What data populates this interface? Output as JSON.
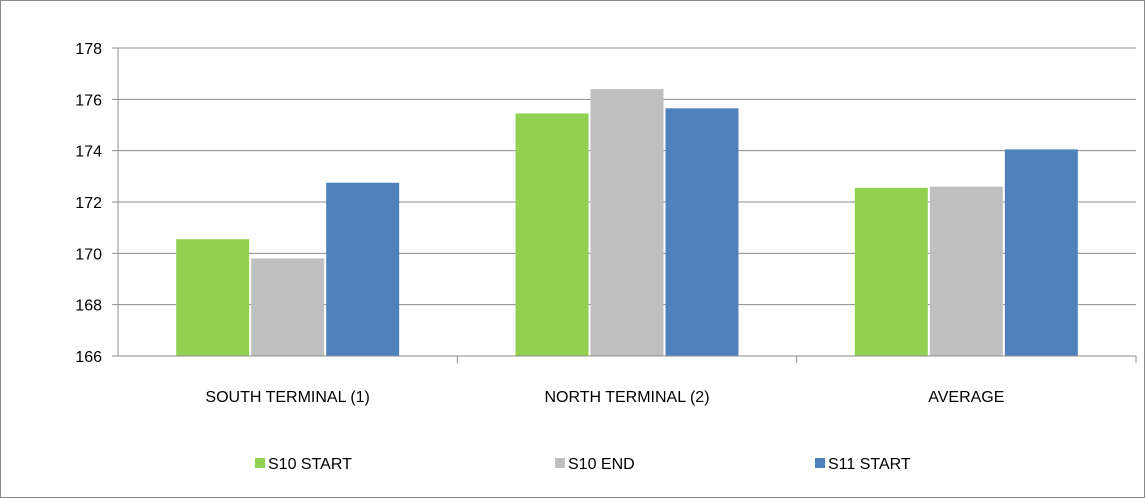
{
  "chart_data": {
    "type": "bar",
    "title": "",
    "xlabel": "",
    "ylabel": "",
    "categories": [
      "SOUTH TERMINAL (1)",
      "NORTH TERMINAL (2)",
      "AVERAGE"
    ],
    "series": [
      {
        "name": "S10 START",
        "color": "#92d050",
        "values": [
          170.55,
          175.45,
          172.55
        ]
      },
      {
        "name": "S10 END",
        "color": "#bfbfbf",
        "values": [
          169.8,
          176.4,
          172.6
        ]
      },
      {
        "name": "S11 START",
        "color": "#4f81bd",
        "values": [
          172.75,
          175.65,
          174.05
        ]
      }
    ],
    "ylim": [
      166,
      178
    ],
    "y_ticks": [
      "166",
      "168",
      "170",
      "172",
      "174",
      "176",
      "178"
    ],
    "grid": true,
    "legend_position": "bottom"
  }
}
